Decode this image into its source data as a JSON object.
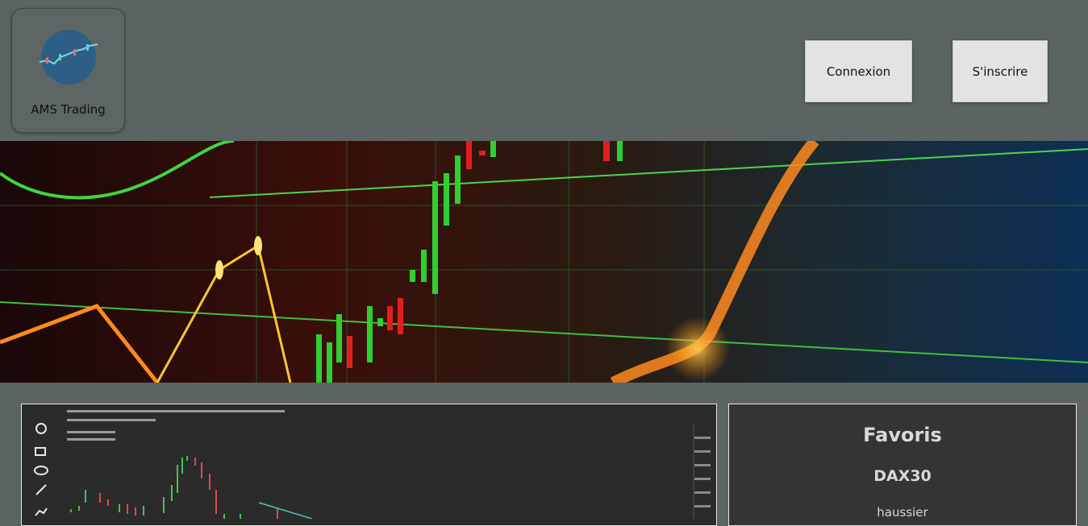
{
  "header": {
    "logo_text": "AMS Trading",
    "buttons": [
      "Connexion",
      "S'inscrire"
    ]
  },
  "favorites": {
    "title": "Favoris",
    "items": [
      {
        "symbol": "DAX30",
        "trend": "haussier"
      }
    ]
  }
}
